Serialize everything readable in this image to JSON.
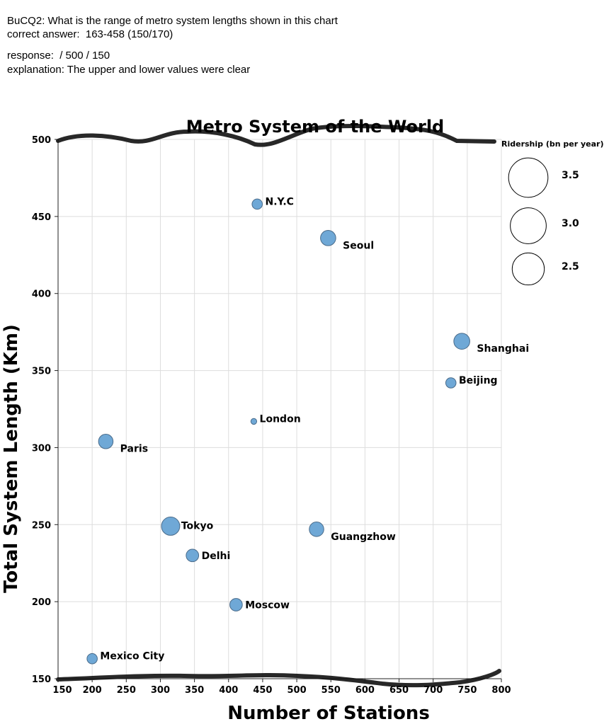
{
  "header": {
    "question": "BuCQ2: What is the range of metro system lengths shown in this chart",
    "correct_answer": "correct answer:  163-458 (150/170)",
    "response": "response:  / 500 / 150",
    "explanation": "explanation: The upper and lower values were clear"
  },
  "chart_data": {
    "type": "scatter",
    "title": "Metro System of the World",
    "xlabel": "Number of Stations",
    "ylabel": "Total System Length (Km)",
    "xlim": [
      150,
      800
    ],
    "ylim": [
      150,
      500
    ],
    "x_ticks": [
      150,
      200,
      250,
      300,
      350,
      400,
      450,
      500,
      550,
      600,
      650,
      700,
      750,
      800
    ],
    "y_ticks": [
      150,
      200,
      250,
      300,
      350,
      400,
      450,
      500
    ],
    "grid": true,
    "size_legend": {
      "title": "Ridership (bn per year)",
      "entries": [
        {
          "label": "3.5",
          "value": 3.5
        },
        {
          "label": "3.0",
          "value": 3.0
        },
        {
          "label": "2.5",
          "value": 2.5
        }
      ]
    },
    "points": [
      {
        "name": "N.Y.C",
        "x": 442,
        "y": 458,
        "ridership": 1.7,
        "label_side": "right"
      },
      {
        "name": "Seoul",
        "x": 546,
        "y": 436,
        "ridership": 2.9,
        "label_side": "right-far"
      },
      {
        "name": "Shanghai",
        "x": 742,
        "y": 369,
        "ridership": 3.1,
        "label_side": "right-far"
      },
      {
        "name": "Beijing",
        "x": 726,
        "y": 342,
        "ridership": 1.7,
        "label_side": "right"
      },
      {
        "name": "London",
        "x": 437,
        "y": 317,
        "ridership": 0.9,
        "label_side": "right"
      },
      {
        "name": "Paris",
        "x": 220,
        "y": 304,
        "ridership": 2.7,
        "label_side": "right-far"
      },
      {
        "name": "Tokyo",
        "x": 315,
        "y": 249,
        "ridership": 3.8,
        "label_side": "right-top"
      },
      {
        "name": "Delhi",
        "x": 347,
        "y": 230,
        "ridership": 2.2,
        "label_side": "right"
      },
      {
        "name": "Guangzhow",
        "x": 529,
        "y": 247,
        "ridership": 2.7,
        "label_side": "right-far"
      },
      {
        "name": "Moscow",
        "x": 411,
        "y": 198,
        "ridership": 2.2,
        "label_side": "right"
      },
      {
        "name": "Mexico City",
        "x": 200,
        "y": 163,
        "ridership": 1.7,
        "label_side": "right"
      }
    ],
    "marker_color": "#6fa8d6",
    "marker_edge": "#4a6b8a"
  }
}
